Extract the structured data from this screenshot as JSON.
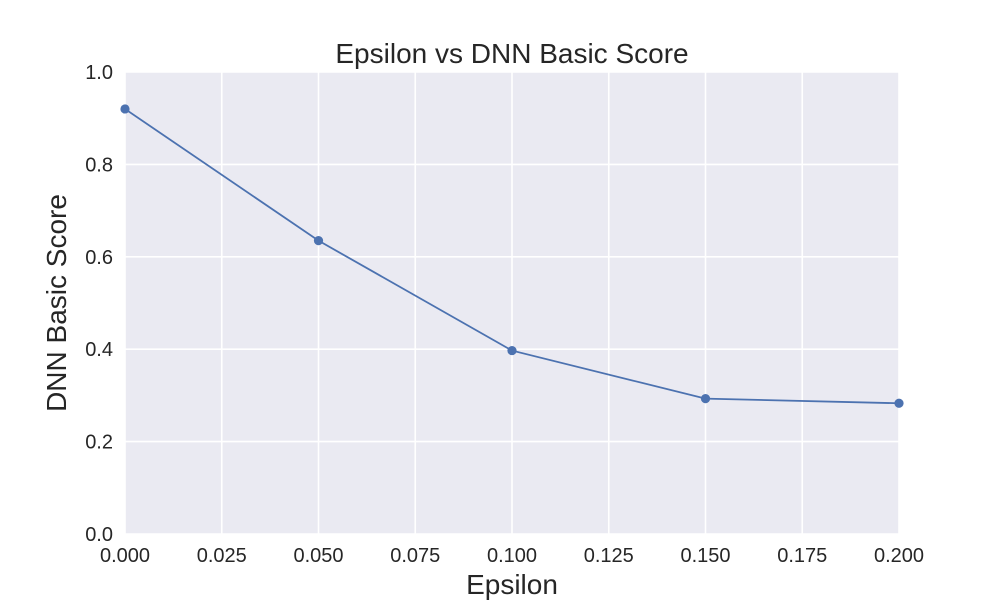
{
  "chart_data": {
    "type": "line",
    "title": "Epsilon vs DNN Basic Score",
    "xlabel": "Epsilon",
    "ylabel": "DNN Basic Score",
    "xlim": [
      0.0,
      0.2
    ],
    "ylim": [
      0.0,
      1.0
    ],
    "x_ticks": [
      0.0,
      0.025,
      0.05,
      0.075,
      0.1,
      0.125,
      0.15,
      0.175,
      0.2
    ],
    "x_tick_labels": [
      "0.000",
      "0.025",
      "0.050",
      "0.075",
      "0.100",
      "0.125",
      "0.150",
      "0.175",
      "0.200"
    ],
    "y_ticks": [
      0.0,
      0.2,
      0.4,
      0.6,
      0.8,
      1.0
    ],
    "y_tick_labels": [
      "0.0",
      "0.2",
      "0.4",
      "0.6",
      "0.8",
      "1.0"
    ],
    "grid": true,
    "series": [
      {
        "x": [
          0.0,
          0.05,
          0.1,
          0.15,
          0.2
        ],
        "y": [
          0.92,
          0.635,
          0.397,
          0.293,
          0.283
        ],
        "color": "#4c72b0",
        "marker": "circle"
      }
    ],
    "background_color": "#eaeaf2",
    "grid_color": "#ffffff"
  }
}
